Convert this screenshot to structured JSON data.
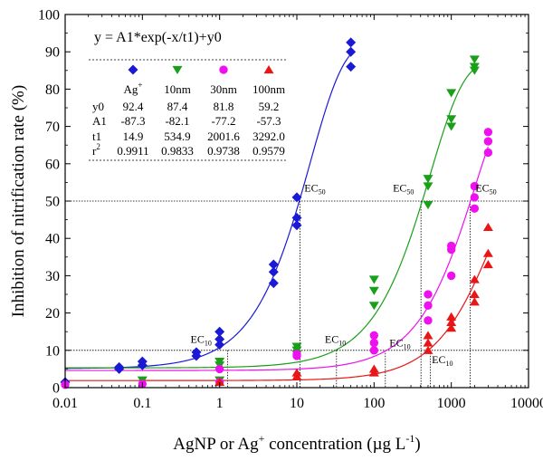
{
  "chart_data": {
    "type": "scatter",
    "x_scale": "log",
    "xlim": [
      0.01,
      10000
    ],
    "ylim": [
      0,
      100
    ],
    "x_ticks": [
      0.01,
      0.1,
      1,
      10,
      100,
      1000,
      10000
    ],
    "x_tick_labels": [
      "0.01",
      "0.1",
      "1",
      "10",
      "100",
      "1000",
      "10000"
    ],
    "y_ticks": [
      0,
      10,
      20,
      30,
      40,
      50,
      60,
      70,
      80,
      90,
      100
    ],
    "y_tick_labels": [
      "0",
      "10",
      "20",
      "30",
      "40",
      "50",
      "60",
      "70",
      "80",
      "90",
      "100"
    ],
    "xlabel": {
      "main": "AgNP or Ag",
      "sup1": "+",
      "mid": " concentration (µg L",
      "sup2": "-1",
      "end": ")"
    },
    "ylabel": "Inhibition of nitrification rate (%)",
    "equation": "y = A1*exp(-x/t1)+y0",
    "grid": false,
    "reference_lines_y": [
      10,
      50
    ],
    "legend_table": {
      "row_labels": [
        "y0",
        "A1",
        "t1",
        "r"
      ],
      "r_sup": "2",
      "columns": [
        {
          "label": "Ag",
          "label_sup": "+",
          "values": [
            "92.4",
            "-87.3",
            "14.9",
            "0.9911"
          ]
        },
        {
          "label": "10nm",
          "label_sup": "",
          "values": [
            "87.4",
            "-82.1",
            "534.9",
            "0.9833"
          ]
        },
        {
          "label": "30nm",
          "label_sup": "",
          "values": [
            "81.8",
            "-77.2",
            "2001.6",
            "0.9738"
          ]
        },
        {
          "label": "100nm",
          "label_sup": "",
          "values": [
            "59.2",
            "-57.3",
            "3292.0",
            "0.9579"
          ]
        }
      ]
    },
    "series": [
      {
        "name": "Ag+",
        "marker": "diamond",
        "color": "#1a1ad6",
        "fit": {
          "y0": 92.4,
          "A1": -87.3,
          "t1": 14.9
        },
        "points": [
          [
            0.01,
            1.5
          ],
          [
            0.05,
            5.5
          ],
          [
            0.05,
            5
          ],
          [
            0.1,
            7
          ],
          [
            0.1,
            6
          ],
          [
            0.5,
            9.5
          ],
          [
            0.5,
            8.5
          ],
          [
            1,
            15
          ],
          [
            1,
            13
          ],
          [
            1,
            11.5
          ],
          [
            5,
            33
          ],
          [
            5,
            31
          ],
          [
            5,
            28
          ],
          [
            10,
            51
          ],
          [
            10,
            45.5
          ],
          [
            10,
            43.5
          ],
          [
            50,
            92.5
          ],
          [
            50,
            90
          ],
          [
            50,
            86
          ]
        ],
        "ec10": 1.27,
        "ec50": 11.0
      },
      {
        "name": "10nm",
        "marker": "triangle-down",
        "color": "#18a018",
        "fit": {
          "y0": 87.4,
          "A1": -82.1,
          "t1": 534.9
        },
        "points": [
          [
            0.1,
            2
          ],
          [
            1,
            7
          ],
          [
            1,
            6
          ],
          [
            1,
            2
          ],
          [
            10,
            11
          ],
          [
            10,
            10
          ],
          [
            10,
            9
          ],
          [
            100,
            29
          ],
          [
            100,
            26
          ],
          [
            100,
            22
          ],
          [
            500,
            56
          ],
          [
            500,
            54
          ],
          [
            500,
            49
          ],
          [
            1000,
            79
          ],
          [
            1000,
            72
          ],
          [
            1000,
            70
          ],
          [
            2000,
            88
          ],
          [
            2000,
            86
          ],
          [
            2000,
            85
          ]
        ],
        "ec10": 32.6,
        "ec50": 405
      },
      {
        "name": "30nm",
        "marker": "circle",
        "color": "#ee10ee",
        "fit": {
          "y0": 81.8,
          "A1": -77.2,
          "t1": 2001.6
        },
        "points": [
          [
            0.01,
            0.8
          ],
          [
            0.1,
            1
          ],
          [
            1,
            5
          ],
          [
            1,
            1.5
          ],
          [
            10,
            9
          ],
          [
            10,
            8.5
          ],
          [
            100,
            14
          ],
          [
            100,
            12
          ],
          [
            100,
            10
          ],
          [
            500,
            25
          ],
          [
            500,
            22
          ],
          [
            500,
            18
          ],
          [
            1000,
            38
          ],
          [
            1000,
            37
          ],
          [
            1000,
            30
          ],
          [
            2000,
            54
          ],
          [
            2000,
            51
          ],
          [
            2000,
            48
          ],
          [
            3000,
            68.5
          ],
          [
            3000,
            66
          ],
          [
            3000,
            63
          ]
        ],
        "ec10": 140,
        "ec50": 1750
      },
      {
        "name": "100nm",
        "marker": "triangle-up",
        "color": "#e81616",
        "fit": {
          "y0": 59.2,
          "A1": -57.3,
          "t1": 3292.0
        },
        "points": [
          [
            1,
            1.5
          ],
          [
            10,
            4
          ],
          [
            10,
            3
          ],
          [
            100,
            5
          ],
          [
            100,
            4
          ],
          [
            500,
            14
          ],
          [
            500,
            12
          ],
          [
            500,
            10
          ],
          [
            1000,
            19
          ],
          [
            1000,
            17.5
          ],
          [
            1000,
            16
          ],
          [
            2000,
            29
          ],
          [
            2000,
            25
          ],
          [
            2000,
            23
          ],
          [
            3000,
            43
          ],
          [
            3000,
            36
          ],
          [
            3000,
            33
          ]
        ],
        "ec10": 535
      }
    ],
    "annotations": [
      {
        "main": "EC",
        "sub": "10",
        "x": 0.42,
        "y": 12
      },
      {
        "main": "EC",
        "sub": "50",
        "x": 12.5,
        "y": 52.5
      },
      {
        "main": "EC",
        "sub": "10",
        "x": 23,
        "y": 12
      },
      {
        "main": "EC",
        "sub": "50",
        "x": 175,
        "y": 52.5
      },
      {
        "main": "EC",
        "sub": "10",
        "x": 158,
        "y": 11
      },
      {
        "main": "EC",
        "sub": "50",
        "x": 2050,
        "y": 52.5
      },
      {
        "main": "EC",
        "sub": "10",
        "x": 560,
        "y": 6.5
      }
    ]
  }
}
